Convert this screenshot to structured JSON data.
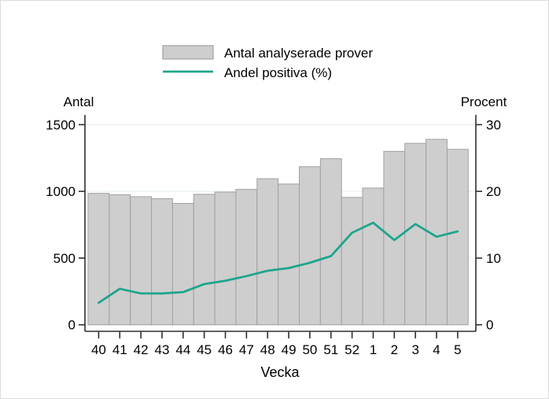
{
  "colors": {
    "background": "#ffffff",
    "axis": "#2f2f2f",
    "gridline": "#e9f1f1",
    "text": "#000000",
    "frame_border": "#dcdcdc"
  },
  "chart_data": {
    "type": "bar",
    "title": "",
    "categories": [
      "40",
      "41",
      "42",
      "43",
      "44",
      "45",
      "46",
      "47",
      "48",
      "49",
      "50",
      "51",
      "52",
      "1",
      "2",
      "3",
      "4",
      "5"
    ],
    "series": [
      {
        "name": "Antal analyserade prover",
        "type": "bar",
        "axis": "left",
        "color": "#cecece",
        "border_color": "#a1a1a1",
        "values": [
          985,
          975,
          960,
          945,
          910,
          978,
          995,
          1015,
          1095,
          1055,
          1185,
          1245,
          955,
          1025,
          1300,
          1360,
          1390,
          1315
        ]
      },
      {
        "name": "Andel positiva (%)",
        "type": "line",
        "axis": "right",
        "color": "#1fa58c",
        "values": [
          3.3,
          5.4,
          4.7,
          4.7,
          4.9,
          6.1,
          6.6,
          7.3,
          8.1,
          8.5,
          9.3,
          10.3,
          13.8,
          15.3,
          12.7,
          15.1,
          13.2,
          14.0
        ]
      }
    ],
    "left_axis": {
      "title": "Antal",
      "ticks": [
        0,
        500,
        1000,
        1500
      ],
      "range": [
        0,
        1500
      ]
    },
    "right_axis": {
      "title": "Procent",
      "ticks": [
        0,
        10,
        20,
        30
      ],
      "range": [
        0,
        30
      ]
    },
    "x_axis": {
      "title": "Vecka"
    },
    "legend_position": "top-center",
    "grid": true
  }
}
